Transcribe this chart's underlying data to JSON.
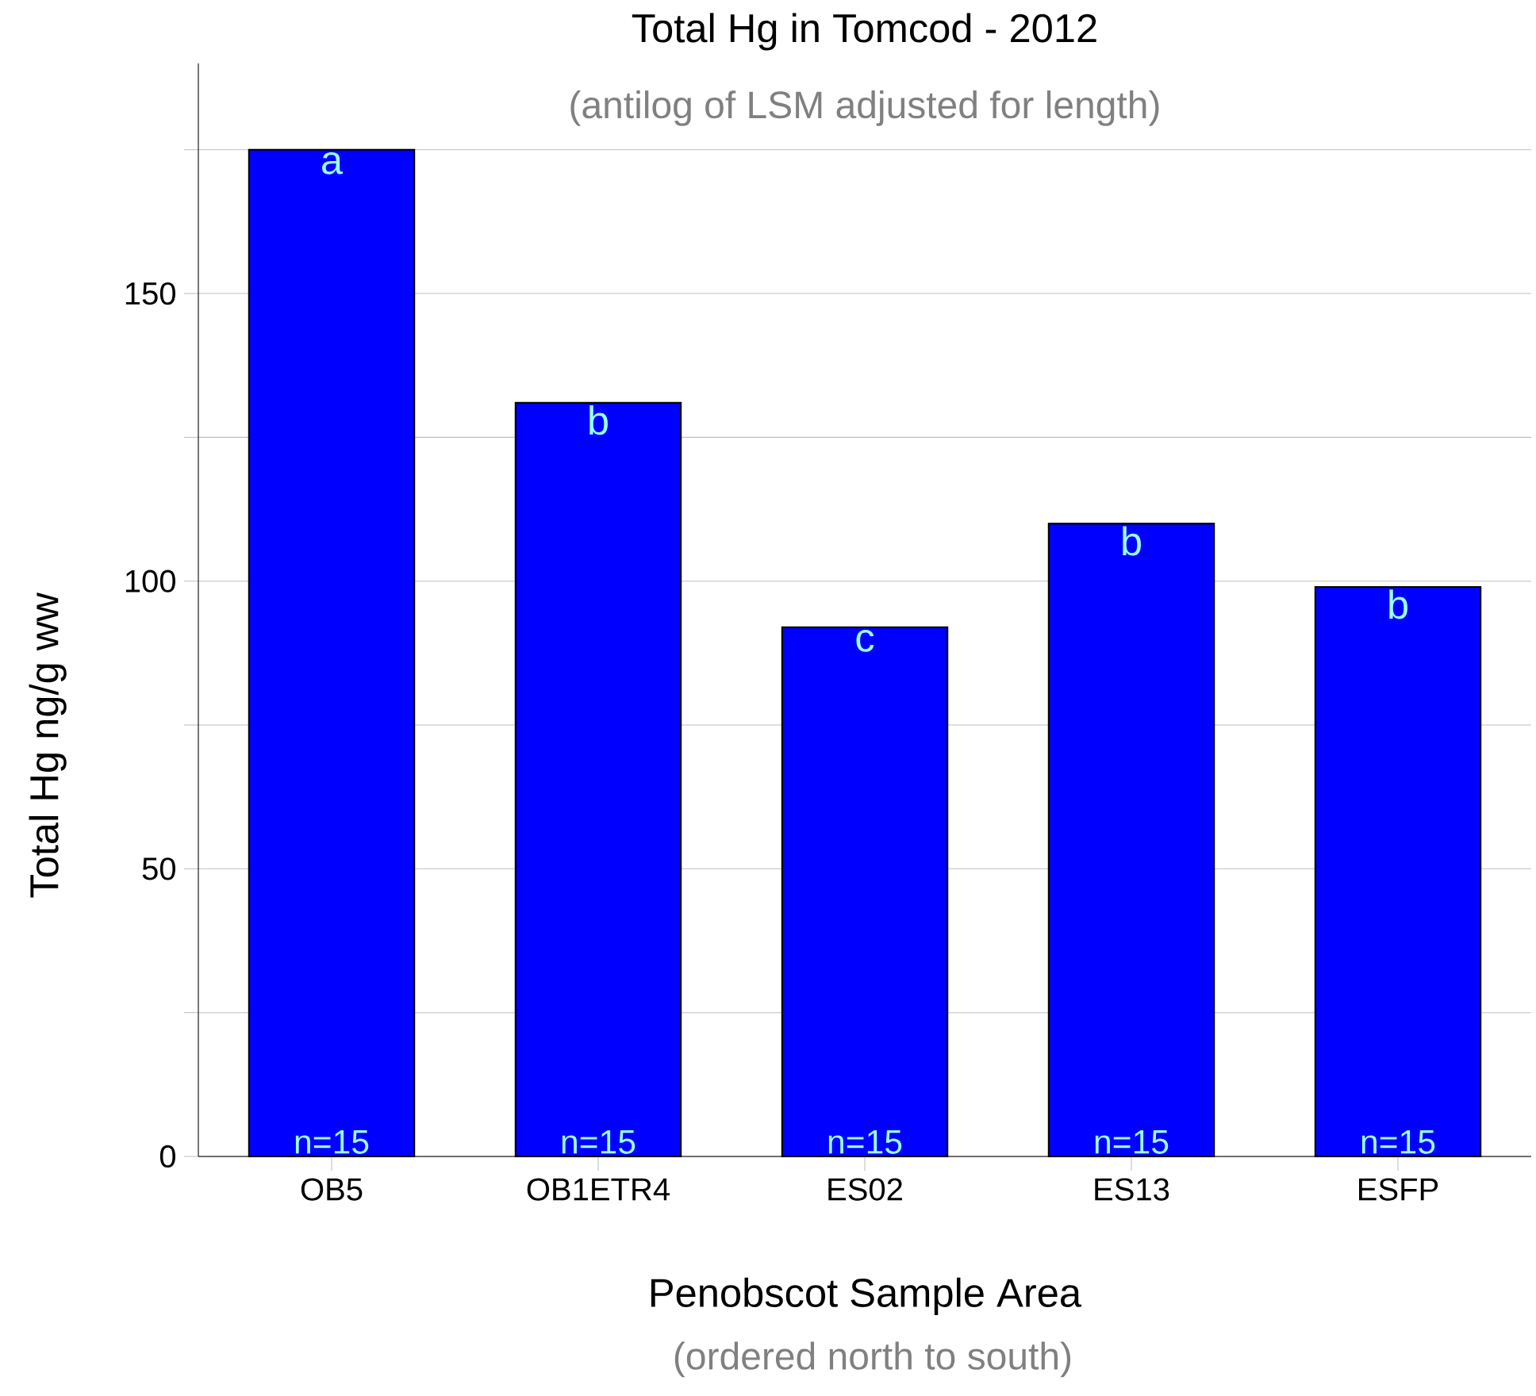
{
  "chart_data": {
    "type": "bar",
    "title": "Total Hg in Tomcod - 2012",
    "subtitle": "(antilog of LSM adjusted for length)",
    "xlabel": "Penobscot Sample Area",
    "ylabel": "Total Hg ng/g ww",
    "categories": [
      "OB5",
      "OB1ETR4",
      "ES02",
      "ES13",
      "ESFP"
    ],
    "values": [
      175,
      131,
      92,
      110,
      99
    ],
    "color": "#0000ff",
    "ylim": [
      0,
      190
    ],
    "yticks": [
      0,
      {
        "value": 25,
        "label": null
      },
      50,
      {
        "value": 75,
        "label": null
      },
      100,
      {
        "value": 125,
        "label": null
      },
      150,
      {
        "value": 175,
        "label": null
      }
    ],
    "grid": "y",
    "annotations": [
      {
        "text": "a",
        "x": "OB5",
        "y": 175
      },
      {
        "text": "b",
        "x": "OB1ETR4",
        "y": 131
      },
      {
        "text": "c",
        "x": "ES02",
        "y": 92
      },
      {
        "text": "b",
        "x": "ES13",
        "y": 110
      },
      {
        "text": "b",
        "x": "ESFP",
        "y": 99
      },
      {
        "text": "n=15",
        "x": "OB5",
        "y": 0
      },
      {
        "text": "n=15",
        "x": "OB1ETR4",
        "y": 0
      },
      {
        "text": "n=15",
        "x": "ES02",
        "y": 0
      },
      {
        "text": "n=15",
        "x": "ES13",
        "y": 0
      },
      {
        "text": "n=15",
        "x": "ESFP",
        "y": 0
      },
      "(ordered north to south)"
    ]
  }
}
